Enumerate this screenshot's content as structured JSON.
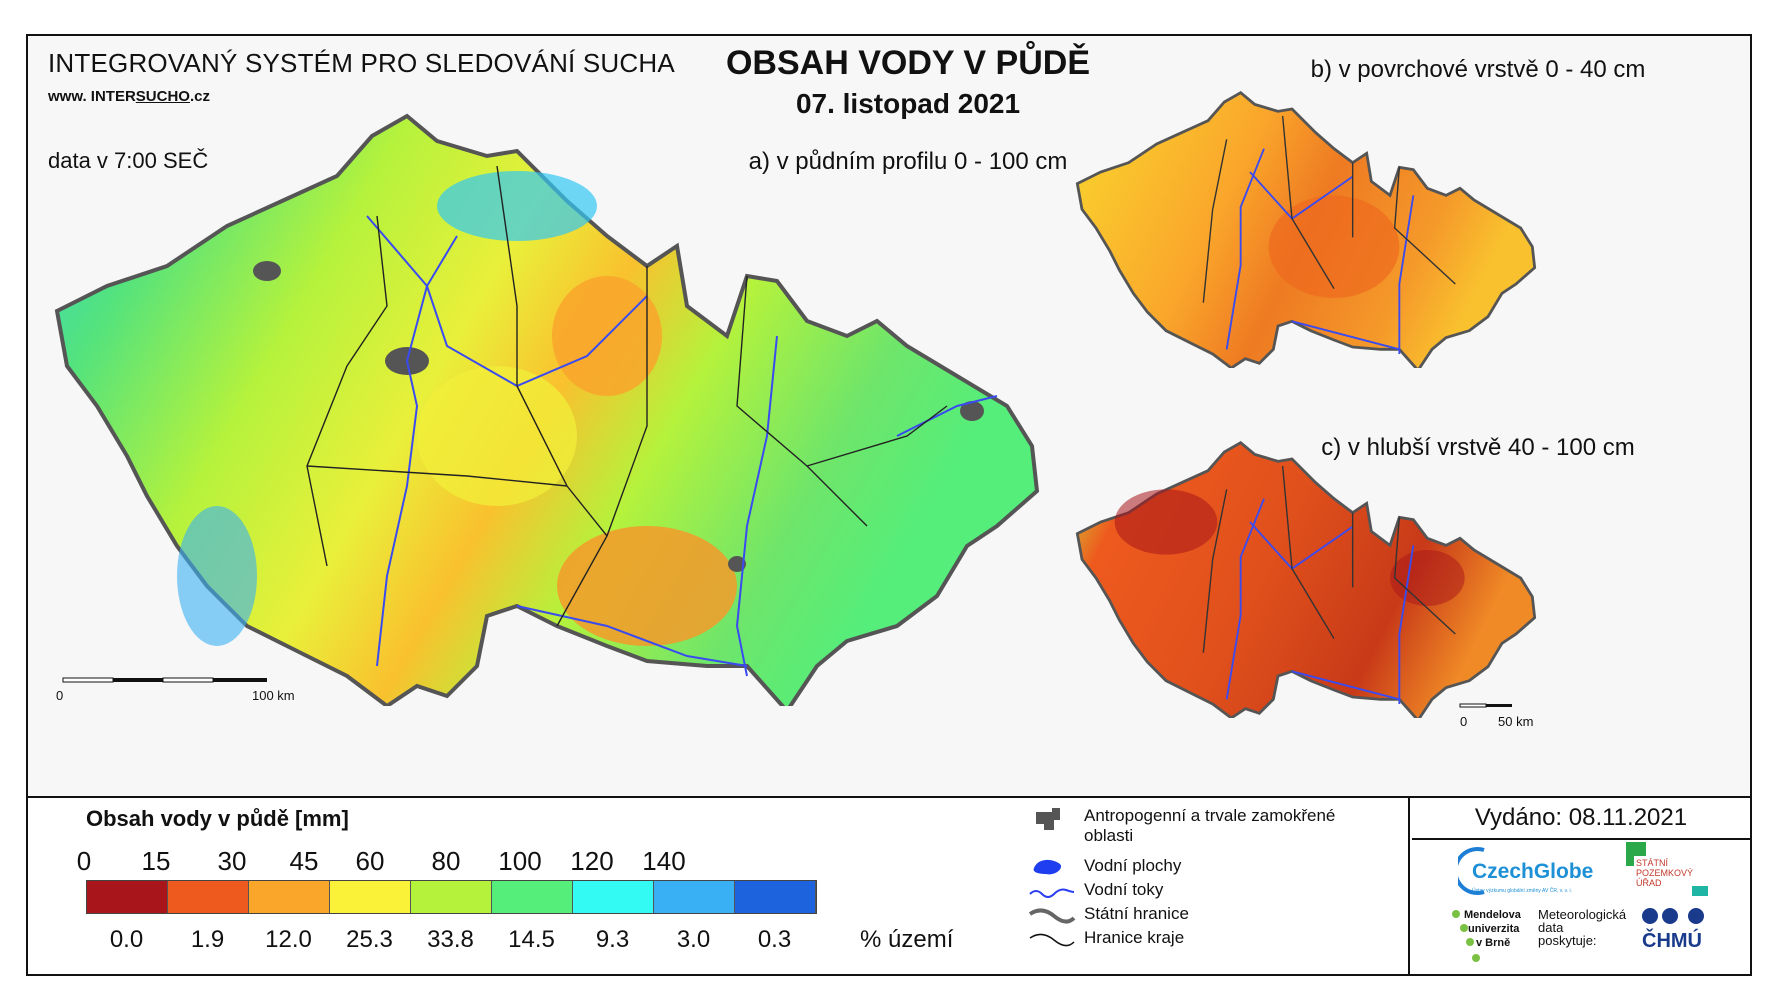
{
  "header": {
    "system_title": "INTEGROVANÝ SYSTÉM PRO SLEDOVÁNÍ SUCHA",
    "url_prefix": "www. INTER",
    "url_underlined": "SUCHO",
    "url_suffix": ".cz",
    "data_time": "data v 7:00 SEČ",
    "main_title": "OBSAH VODY V PŮDĚ",
    "date": "07. listopad 2021"
  },
  "panels": {
    "a": "a) v půdním profilu 0 - 100 cm",
    "b": "b) v povrchové vrstvě 0 - 40 cm",
    "c": "c) v hlubší vrstvě 40 - 100 cm"
  },
  "scale_bars": {
    "main": {
      "start": "0",
      "end": "100 km"
    },
    "small": {
      "start": "0",
      "end": "50 km"
    }
  },
  "legend": {
    "title": "Obsah vody v půdě  [mm]",
    "breaks": [
      "0",
      "15",
      "30",
      "45",
      "60",
      "80",
      "100",
      "120",
      "140"
    ],
    "colors": [
      "#a8151a",
      "#ee5a1e",
      "#faa62b",
      "#f9f239",
      "#b5f23c",
      "#55ee7a",
      "#33fbf4",
      "#3ab0f4",
      "#1e63de"
    ],
    "percent_values": [
      "0.0",
      "1.9",
      "12.0",
      "25.3",
      "33.8",
      "14.5",
      "9.3",
      "3.0",
      "0.3"
    ],
    "percent_unit": "% území"
  },
  "symbols": [
    {
      "icon": "urban-area-icon",
      "label": "Antropogenní a trvale zamokřené oblasti"
    },
    {
      "icon": "water-body-icon",
      "label": "Vodní plochy"
    },
    {
      "icon": "river-icon",
      "label": "Vodní toky"
    },
    {
      "icon": "state-border-icon",
      "label": "Státní hranice"
    },
    {
      "icon": "region-border-icon",
      "label": "Hranice kraje"
    }
  ],
  "footer": {
    "issued": "Vydáno: 08.11.2021",
    "czechglobe": "CzechGlobe",
    "czechglobe_sub": "Ústav výzkumu globální změny AV ČR, v. v. i.",
    "spu_line1": "STÁTNÍ",
    "spu_line2": "POZEMKOVÝ",
    "spu_line3": "ÚŘAD",
    "mendel_line1": "Mendelova",
    "mendel_line2": "univerzita",
    "mendel_line3": "v Brně",
    "meteo_line1": "Meteorologická",
    "meteo_line2": "data",
    "meteo_line3": "poskytuje:",
    "chmu": "ČHMÚ"
  }
}
